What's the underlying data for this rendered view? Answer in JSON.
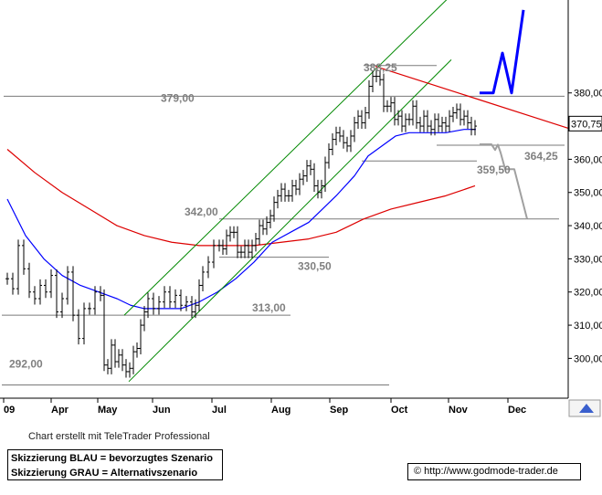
{
  "chart_data": {
    "type": "ohlc",
    "y_range": [
      288,
      408
    ],
    "y_ticks": [
      "380,00",
      "370,00",
      "360,00",
      "350,00",
      "340,00",
      "330,00",
      "320,00",
      "310,00",
      "300,00"
    ],
    "x_ticks": [
      "09",
      "Apr",
      "May",
      "Jun",
      "Jul",
      "Aug",
      "Sep",
      "Oct",
      "Nov",
      "Dec"
    ],
    "last_price": "370,75",
    "hlines": [
      {
        "label": "388,25",
        "value": 388.25
      },
      {
        "label": "379,00",
        "value": 379.0
      },
      {
        "label": "364,25",
        "value": 364.25
      },
      {
        "label": "359,50",
        "value": 359.5
      },
      {
        "label": "342,00",
        "value": 342.0
      },
      {
        "label": "330,50",
        "value": 330.5
      },
      {
        "label": "313,00",
        "value": 313.0
      },
      {
        "label": "292,00",
        "value": 292.0
      }
    ],
    "price_path": [
      [
        0,
        324
      ],
      [
        6,
        321
      ],
      [
        12,
        334
      ],
      [
        18,
        327
      ],
      [
        24,
        320
      ],
      [
        30,
        318
      ],
      [
        36,
        322
      ],
      [
        42,
        320
      ],
      [
        48,
        325
      ],
      [
        54,
        314
      ],
      [
        60,
        318
      ],
      [
        66,
        326
      ],
      [
        72,
        313
      ],
      [
        78,
        306
      ],
      [
        84,
        315
      ],
      [
        90,
        315
      ],
      [
        96,
        320
      ],
      [
        102,
        319
      ],
      [
        106,
        298
      ],
      [
        110,
        297
      ],
      [
        114,
        304
      ],
      [
        118,
        299
      ],
      [
        122,
        301
      ],
      [
        126,
        298
      ],
      [
        130,
        296
      ],
      [
        134,
        297
      ],
      [
        138,
        302
      ],
      [
        142,
        303
      ],
      [
        146,
        310
      ],
      [
        150,
        314
      ],
      [
        154,
        318
      ],
      [
        160,
        315
      ],
      [
        166,
        317
      ],
      [
        172,
        320
      ],
      [
        178,
        317
      ],
      [
        184,
        319
      ],
      [
        190,
        316
      ],
      [
        196,
        317
      ],
      [
        202,
        314
      ],
      [
        206,
        316
      ],
      [
        210,
        322
      ],
      [
        214,
        326
      ],
      [
        220,
        329
      ],
      [
        226,
        334
      ],
      [
        232,
        334
      ],
      [
        236,
        333
      ],
      [
        240,
        337
      ],
      [
        244,
        338
      ],
      [
        248,
        338
      ],
      [
        252,
        332
      ],
      [
        256,
        332
      ],
      [
        260,
        334
      ],
      [
        264,
        332
      ],
      [
        268,
        334
      ],
      [
        272,
        336
      ],
      [
        276,
        340
      ],
      [
        280,
        339
      ],
      [
        284,
        341
      ],
      [
        288,
        343
      ],
      [
        292,
        347
      ],
      [
        296,
        349
      ],
      [
        300,
        351
      ],
      [
        304,
        349
      ],
      [
        308,
        349
      ],
      [
        312,
        352
      ],
      [
        316,
        351
      ],
      [
        320,
        354
      ],
      [
        324,
        355
      ],
      [
        328,
        358
      ],
      [
        332,
        357
      ],
      [
        336,
        352
      ],
      [
        340,
        350
      ],
      [
        344,
        352
      ],
      [
        348,
        359
      ],
      [
        352,
        363
      ],
      [
        356,
        366
      ],
      [
        360,
        368
      ],
      [
        364,
        367
      ],
      [
        368,
        365
      ],
      [
        372,
        364
      ],
      [
        376,
        367
      ],
      [
        380,
        371
      ],
      [
        384,
        373
      ],
      [
        388,
        371
      ],
      [
        392,
        374
      ],
      [
        396,
        382
      ],
      [
        400,
        385
      ],
      [
        404,
        385
      ],
      [
        408,
        384
      ],
      [
        412,
        376
      ],
      [
        416,
        376
      ],
      [
        420,
        377
      ],
      [
        424,
        372
      ],
      [
        428,
        373
      ],
      [
        432,
        370
      ],
      [
        436,
        372
      ],
      [
        440,
        372
      ],
      [
        444,
        376
      ],
      [
        448,
        371
      ],
      [
        452,
        370
      ],
      [
        456,
        373
      ],
      [
        460,
        370
      ],
      [
        464,
        369
      ],
      [
        468,
        372
      ],
      [
        472,
        370
      ],
      [
        476,
        371
      ],
      [
        480,
        370
      ],
      [
        484,
        373
      ],
      [
        488,
        374
      ],
      [
        492,
        375
      ],
      [
        496,
        372
      ],
      [
        500,
        373
      ],
      [
        504,
        371
      ],
      [
        508,
        369
      ],
      [
        512,
        370
      ]
    ],
    "ma_blue": [
      [
        0,
        348
      ],
      [
        20,
        337
      ],
      [
        40,
        330
      ],
      [
        60,
        325
      ],
      [
        80,
        322
      ],
      [
        100,
        320
      ],
      [
        120,
        318
      ],
      [
        135,
        316
      ],
      [
        150,
        315
      ],
      [
        170,
        315
      ],
      [
        190,
        315
      ],
      [
        210,
        317
      ],
      [
        230,
        320
      ],
      [
        250,
        324
      ],
      [
        270,
        329
      ],
      [
        290,
        335
      ],
      [
        310,
        338
      ],
      [
        330,
        341
      ],
      [
        345,
        345
      ],
      [
        360,
        349
      ],
      [
        380,
        355
      ],
      [
        395,
        361
      ],
      [
        410,
        364
      ],
      [
        425,
        367
      ],
      [
        440,
        368
      ],
      [
        460,
        368
      ],
      [
        480,
        368
      ],
      [
        500,
        369
      ],
      [
        513,
        369
      ]
    ],
    "ma_red": [
      [
        0,
        363
      ],
      [
        30,
        356
      ],
      [
        60,
        350
      ],
      [
        90,
        345
      ],
      [
        120,
        340
      ],
      [
        150,
        337
      ],
      [
        180,
        335
      ],
      [
        210,
        334
      ],
      [
        240,
        334
      ],
      [
        270,
        334
      ],
      [
        300,
        335
      ],
      [
        330,
        336
      ],
      [
        360,
        338
      ],
      [
        390,
        342
      ],
      [
        420,
        345
      ],
      [
        450,
        347
      ],
      [
        480,
        349
      ],
      [
        512,
        352
      ]
    ],
    "channel_upper": [
      [
        128,
        313
      ],
      [
        488,
        410
      ]
    ],
    "channel_lower": [
      [
        133,
        293
      ],
      [
        486,
        390
      ]
    ],
    "resistance_line": [
      [
        403,
        388
      ],
      [
        618,
        369
      ]
    ],
    "scenario_blue": [
      [
        517,
        380
      ],
      [
        532,
        380
      ],
      [
        542,
        392
      ],
      [
        552,
        380
      ],
      [
        565,
        405
      ]
    ],
    "scenario_grey": [
      [
        517,
        364.5
      ],
      [
        530,
        364.5
      ],
      [
        534,
        362.8
      ],
      [
        537,
        364.4
      ],
      [
        540,
        362
      ],
      [
        545,
        357
      ],
      [
        555,
        357
      ],
      [
        569,
        342
      ]
    ]
  },
  "credit": "Chart erstellt mit TeleTrader Professional",
  "legend": {
    "line1": "Skizzierung BLAU = bevorzugtes Szenario",
    "line2": "Skizzierung GRAU = Alternativszenario"
  },
  "source": "© http://www.godmode-trader.de",
  "colors": {
    "price": "#000000",
    "ma_blue": "#0000ff",
    "ma_red": "#dd0000",
    "channel": "#008800",
    "resistance": "#dd0000",
    "scenario_blue": "#0000ff",
    "scenario_grey": "#a0a0a0",
    "hline": "#7a7a7a",
    "label": "#808080"
  }
}
